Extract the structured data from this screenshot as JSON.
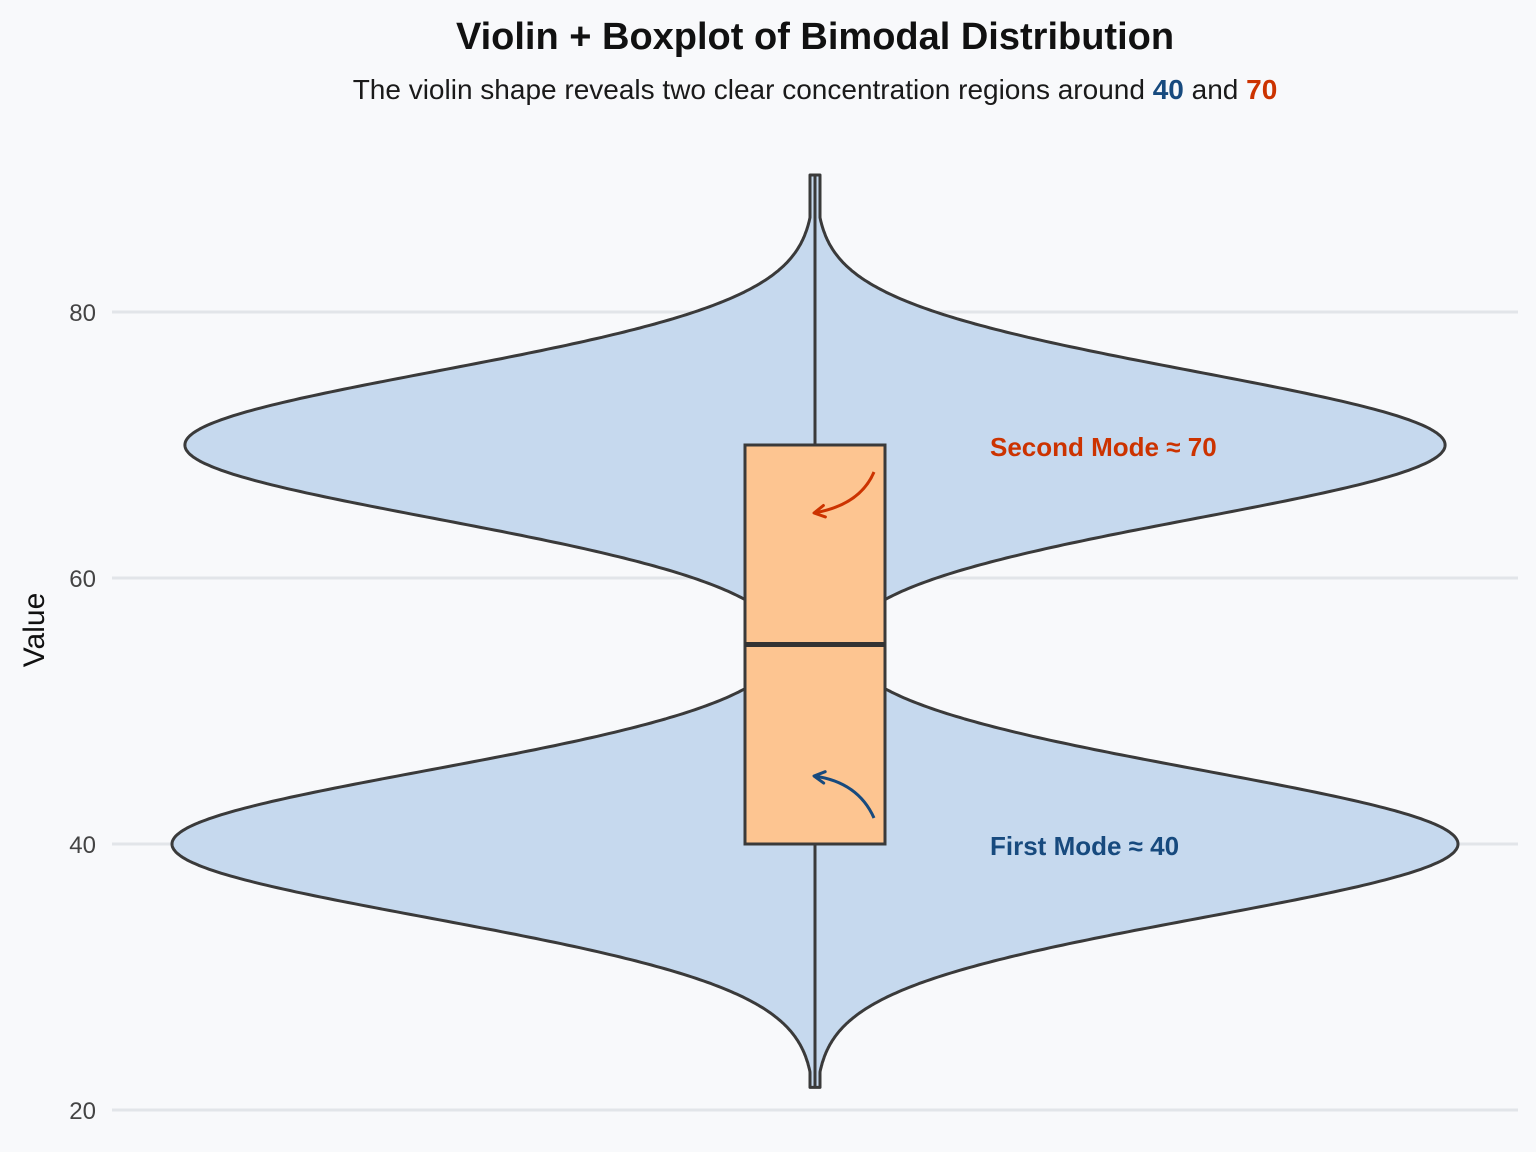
{
  "chart_data": {
    "type": "violin",
    "title": "Violin + Boxplot of Bimodal Distribution",
    "subtitle": {
      "prefix": "The violin shape reveals two clear concentration regions around ",
      "mode1": "40",
      "middle": " and ",
      "mode2": "70"
    },
    "ylabel": "Value",
    "ylim": [
      20,
      90.5
    ],
    "yticks": [
      20,
      40,
      60,
      80
    ],
    "grid": true,
    "violin": {
      "min": 21.7,
      "max": 90.3,
      "modes": [
        {
          "center": 40,
          "spread": 5.5,
          "weight": 1.0
        },
        {
          "center": 70,
          "spread": 5.5,
          "weight": 0.98
        }
      ],
      "waist_value": 54.7
    },
    "box": {
      "q1": 40,
      "median": 55,
      "q3": 70,
      "whisker_low": 21.7,
      "whisker_high": 90.3
    },
    "annotations": [
      {
        "label": "First Mode ≈ 40",
        "value": 40,
        "color": "#174a7e"
      },
      {
        "label": "Second Mode ≈ 70",
        "value": 70,
        "color": "#cc3300"
      }
    ],
    "colors": {
      "violin_fill": "#c6d9ee",
      "box_fill": "#fdc591",
      "outline": "#3a3a3a",
      "grid": "#e2e5e9",
      "mode1": "#174a7e",
      "mode2": "#cc3300"
    }
  }
}
